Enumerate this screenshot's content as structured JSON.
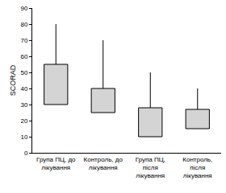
{
  "chart_data": {
    "type": "box",
    "y_label": "SCORAD",
    "categories": [
      "Група ПЦ, до лікування",
      "Контроль, до лікування",
      "Група ПЦ, після лікування",
      "Контроль, після лікування"
    ],
    "series": [
      {
        "color": "#d4d4d4",
        "q1": [
          30,
          25,
          10,
          15
        ],
        "q3": [
          55,
          40,
          28,
          27
        ],
        "high": [
          80,
          70,
          50,
          40
        ]
      }
    ],
    "ylim": [
      0,
      90
    ],
    "yticks": [
      0,
      10,
      20,
      30,
      40,
      50,
      60,
      70,
      80,
      90
    ],
    "grid": false
  }
}
